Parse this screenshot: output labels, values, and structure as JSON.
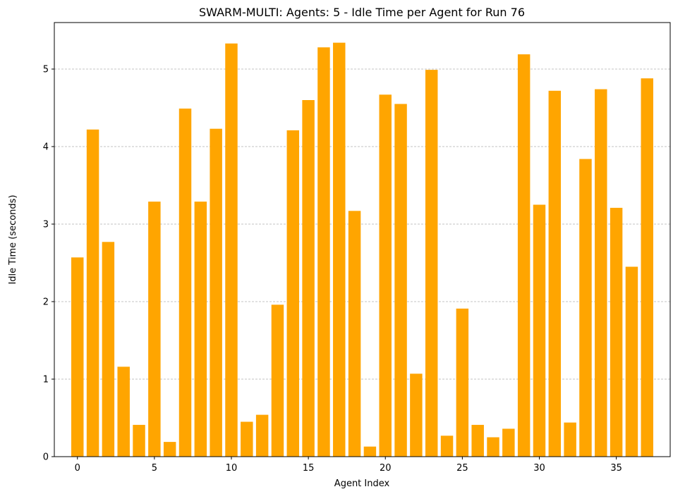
{
  "chart_data": {
    "type": "bar",
    "title": "SWARM-MULTI: Agents: 5 - Idle Time per Agent for Run 76",
    "xlabel": "Agent Index",
    "ylabel": "Idle Time (seconds)",
    "x": [
      0,
      1,
      2,
      3,
      4,
      5,
      6,
      7,
      8,
      9,
      10,
      11,
      12,
      13,
      14,
      15,
      16,
      17,
      18,
      19,
      20,
      21,
      22,
      23,
      24,
      25,
      26,
      27,
      28,
      29,
      30,
      31,
      32,
      33,
      34,
      35,
      36,
      37
    ],
    "values": [
      2.57,
      4.22,
      2.77,
      1.16,
      0.41,
      3.29,
      0.19,
      4.49,
      3.29,
      4.23,
      5.33,
      0.45,
      0.54,
      1.96,
      4.21,
      4.6,
      5.28,
      5.34,
      3.17,
      0.13,
      4.67,
      4.55,
      1.07,
      4.99,
      0.27,
      1.91,
      0.41,
      0.25,
      0.36,
      5.19,
      3.25,
      4.72,
      0.44,
      3.84,
      4.74,
      3.21,
      2.45,
      4.88
    ],
    "xlim": [
      -1.5,
      38.5
    ],
    "ylim": [
      0,
      5.6
    ],
    "xticks": [
      0,
      5,
      10,
      15,
      20,
      25,
      30,
      35
    ],
    "yticks": [
      0,
      1,
      2,
      3,
      4,
      5
    ],
    "grid": "y-only dashed",
    "bar_color": "#ffa500"
  }
}
